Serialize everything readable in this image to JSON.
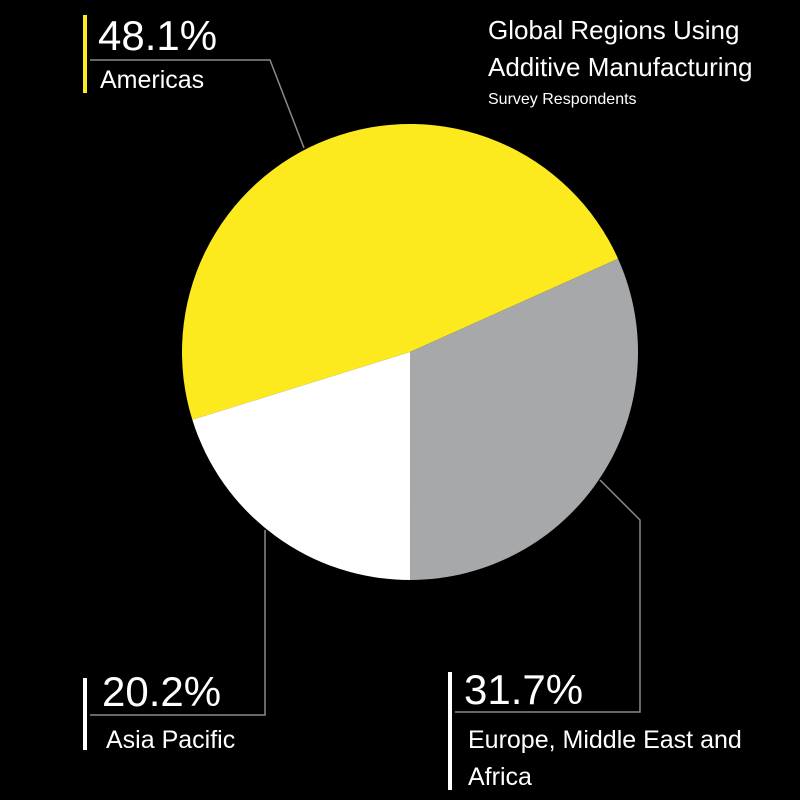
{
  "chart_data": {
    "type": "pie",
    "title": "Global Regions Using Additive Manufacturing",
    "subtitle": "Survey Respondents",
    "categories": [
      "Americas",
      "Europe, Middle East and Africa",
      "Asia Pacific"
    ],
    "values": [
      48.1,
      31.7,
      20.2
    ],
    "value_labels": [
      "48.1%",
      "31.7%",
      "20.2%"
    ],
    "colors": [
      "#fcea1f",
      "#a7a8aa",
      "#ffffff"
    ]
  }
}
